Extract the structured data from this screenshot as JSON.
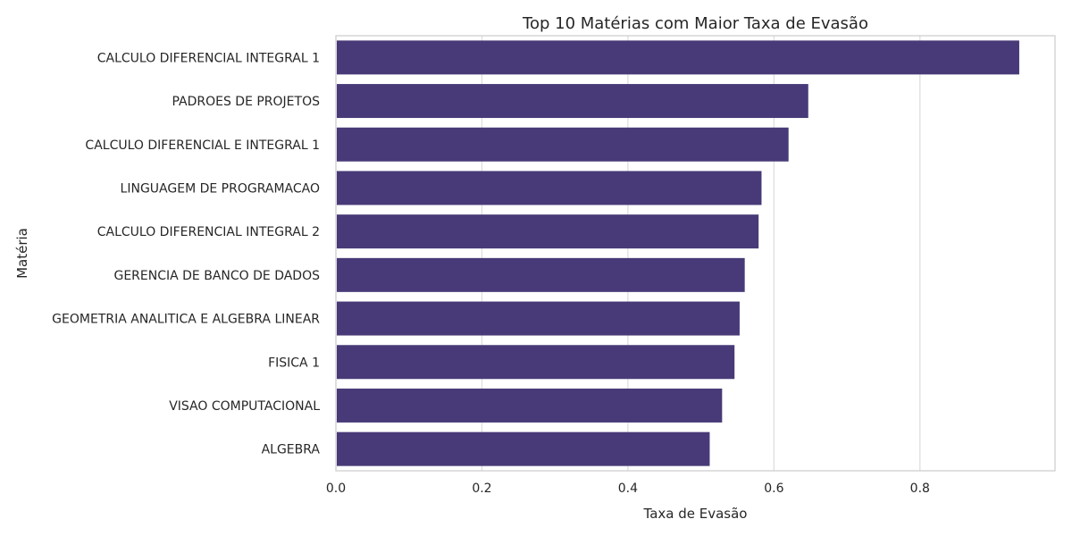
{
  "chart_data": {
    "type": "bar",
    "orientation": "horizontal",
    "title": "Top 10 Matérias com Maior Taxa de Evasão",
    "xlabel": "Taxa de Evasão",
    "ylabel": "Matéria",
    "categories": [
      "CALCULO DIFERENCIAL INTEGRAL 1",
      "PADROES DE PROJETOS",
      "CALCULO DIFERENCIAL E INTEGRAL 1",
      "LINGUAGEM DE PROGRAMACAO",
      "CALCULO DIFERENCIAL INTEGRAL 2",
      "GERENCIA DE BANCO DE DADOS",
      "GEOMETRIA ANALITICA E ALGEBRA LINEAR",
      "FISICA 1",
      "VISAO COMPUTACIONAL",
      "ALGEBRA"
    ],
    "values": [
      0.936,
      0.647,
      0.62,
      0.583,
      0.579,
      0.56,
      0.553,
      0.546,
      0.529,
      0.512
    ],
    "xlim": [
      0,
      0.985
    ],
    "xticks": [
      0.0,
      0.2,
      0.4,
      0.6,
      0.8
    ],
    "xtick_labels": [
      "0.0",
      "0.2",
      "0.4",
      "0.6",
      "0.8"
    ],
    "grid": true,
    "bar_color": "#483a78"
  }
}
